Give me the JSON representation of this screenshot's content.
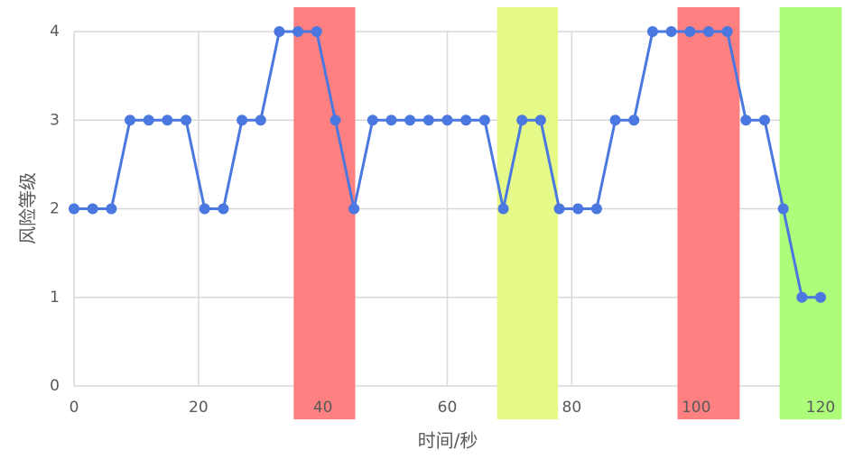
{
  "chart_data": {
    "type": "line",
    "x_label": "时间/秒",
    "y_label": "风险等级",
    "x": [
      0,
      3,
      6,
      9,
      12,
      15,
      18,
      21,
      24,
      27,
      30,
      33,
      36,
      39,
      42,
      45,
      48,
      51,
      54,
      57,
      60,
      63,
      66,
      69,
      72,
      75,
      78,
      81,
      84,
      87,
      90,
      93,
      96,
      99,
      102,
      105,
      108,
      111,
      114,
      117,
      120
    ],
    "series": [
      {
        "color": "#4a78e0",
        "values": [
          2,
          2,
          2,
          3,
          3,
          3,
          3,
          2,
          2,
          3,
          3,
          4,
          4,
          4,
          3,
          2,
          3,
          3,
          3,
          3,
          3,
          3,
          3,
          2,
          3,
          3,
          2,
          2,
          2,
          3,
          3,
          4,
          4,
          4,
          4,
          4,
          3,
          3,
          2,
          1,
          1
        ]
      }
    ],
    "highlights": [
      {
        "start": 35.3,
        "end": 45.2,
        "color": "#ff8080"
      },
      {
        "start": 68,
        "end": 77.8,
        "color": "#e6fa8a"
      },
      {
        "start": 97,
        "end": 107,
        "color": "#ff8080"
      },
      {
        "start": 113.4,
        "end": 123.4,
        "color": "#adfc7a"
      }
    ],
    "xlim": [
      0,
      120
    ],
    "xticks": [
      0,
      20,
      40,
      60,
      80,
      100,
      120
    ],
    "ylim": [
      0,
      4
    ],
    "yticks": [
      0,
      1,
      2,
      3,
      4
    ],
    "grid": true
  }
}
